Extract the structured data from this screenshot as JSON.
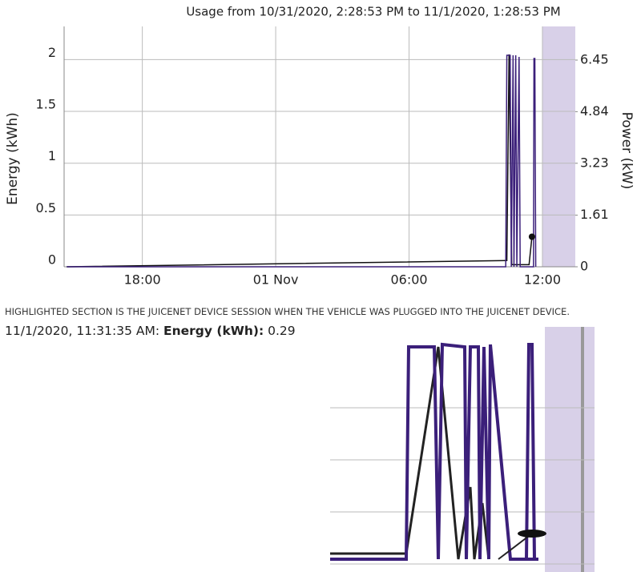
{
  "chart_data": {
    "type": "line",
    "title": "Usage from 10/31/2020, 2:28:53 PM to 11/1/2020, 1:28:53 PM",
    "y_label": "Energy (kWh)",
    "y2_label": "Power (kW)",
    "xlim": [
      14.48,
      37.48
    ],
    "xticks": [
      {
        "value": 18,
        "label": "18:00"
      },
      {
        "value": 24,
        "label": "01 Nov"
      },
      {
        "value": 30,
        "label": "06:00"
      },
      {
        "value": 36,
        "label": "12:00"
      }
    ],
    "ylim": [
      0,
      2.32
    ],
    "yticks": [
      0,
      0.5,
      1,
      1.5,
      2
    ],
    "y2lim": [
      0,
      7.5
    ],
    "y2ticks": [
      0,
      1.61,
      3.23,
      4.84,
      6.45
    ],
    "grid": true,
    "highlight": [
      36.0,
      37.48
    ],
    "highlight_color": "#d8d0e8",
    "series": [
      {
        "color": "#111111",
        "axis": "y",
        "x": [
          14.6,
          34.35,
          34.4,
          34.5,
          34.62,
          35.4,
          35.53
        ],
        "values": [
          0,
          0.06,
          0.06,
          2.05,
          0.02,
          0.02,
          0.29
        ]
      },
      {
        "color": "#3b1f7a",
        "axis": "y2",
        "x": [
          14.6,
          34.35,
          34.4,
          34.55,
          34.6,
          34.68,
          34.72,
          34.8,
          34.85,
          34.95,
          35.0,
          35.1,
          35.6,
          35.62,
          35.66,
          35.7
        ],
        "values": [
          0,
          0,
          6.6,
          6.6,
          0,
          6.6,
          0,
          6.6,
          0,
          6.55,
          0,
          0,
          0,
          6.5,
          6.5,
          0
        ]
      }
    ],
    "marker": {
      "x": 35.53,
      "value": 0.29
    },
    "note": "HIGHLIGHTED SECTION IS THE JUICENET DEVICE SESSION WHEN THE VEHICLE WAS PLUGGED INTO THE JUICENET DEVICE.",
    "tooltip": {
      "time": "11/1/2020, 11:31:35 AM:",
      "label": "Energy (kWh):",
      "value": 0.29
    }
  }
}
